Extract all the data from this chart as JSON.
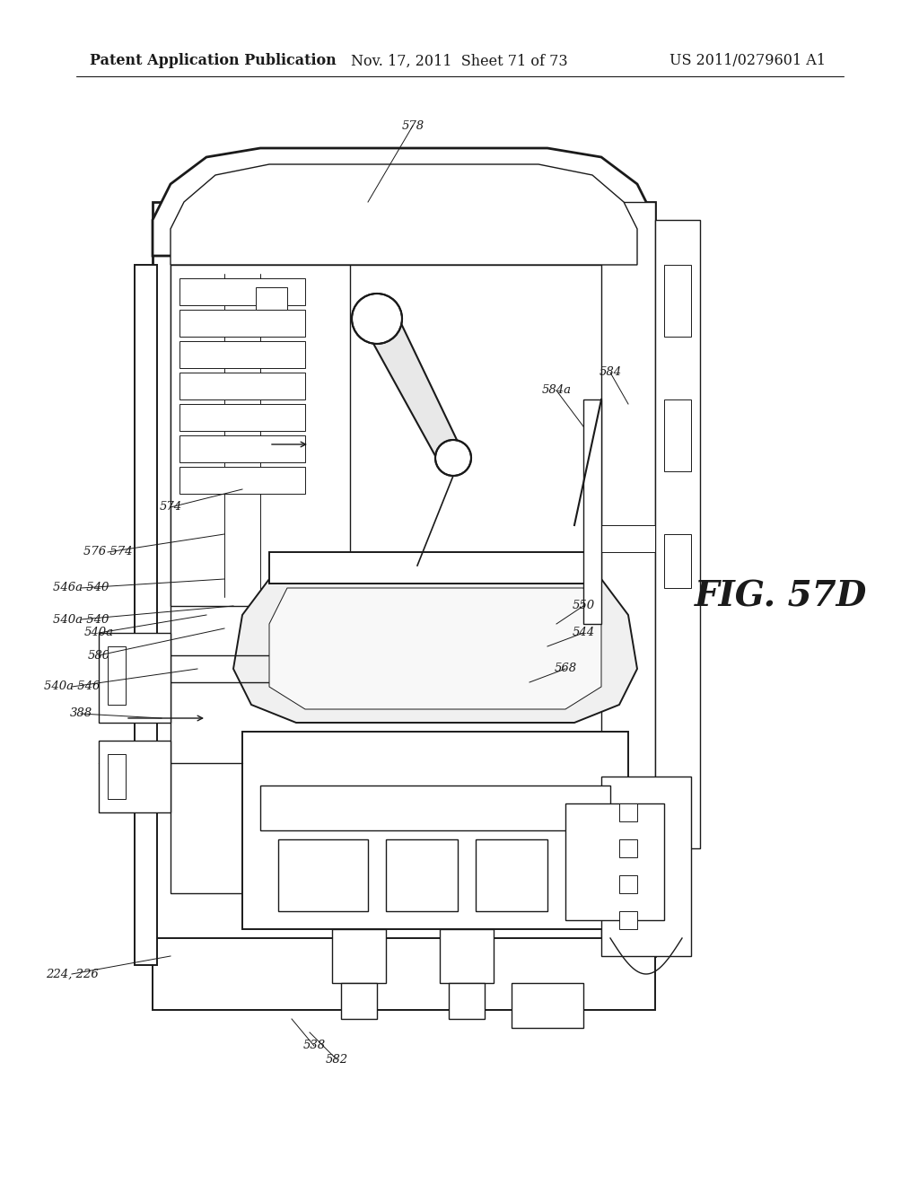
{
  "background_color": "#ffffff",
  "header_left": "Patent Application Publication",
  "header_center": "Nov. 17, 2011  Sheet 71 of 73",
  "header_right": "US 2011/0279601 A1",
  "fig_label": "FIG. 57D",
  "line_color": "#1a1a1a",
  "header_fontsize": 11.5,
  "fig_label_fontsize": 28,
  "ref_fontsize": 9.5
}
